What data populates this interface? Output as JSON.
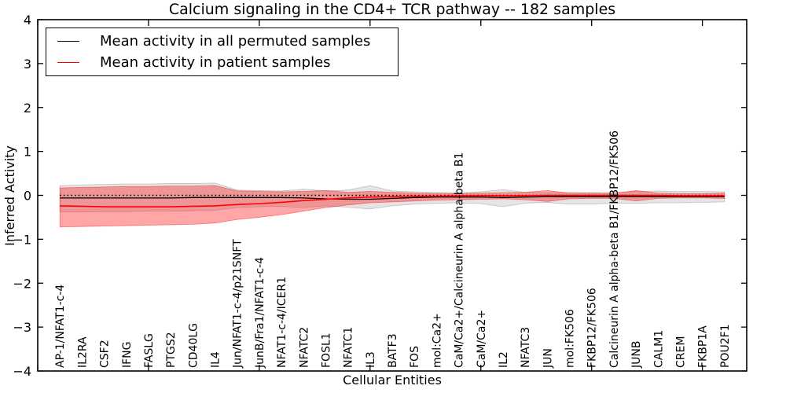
{
  "figure": {
    "title": "Calcium signaling in the CD4+ TCR pathway -- 182 samples",
    "xlabel": "Cellular Entities",
    "ylabel": "Inferred Activity"
  },
  "legend": {
    "position": "upper left",
    "items": [
      {
        "label": "Mean activity in all permuted samples",
        "color": "#000000"
      },
      {
        "label": "Mean activity in patient samples",
        "color": "#ff0000"
      }
    ]
  },
  "chart_data": {
    "type": "line",
    "title": "Calcium signaling in the CD4+ TCR pathway -- 182 samples",
    "xlabel": "Cellular Entities",
    "ylabel": "Inferred Activity",
    "xlim": [
      0,
      32
    ],
    "ylim": [
      -4,
      4
    ],
    "grid": false,
    "legend_position": "upper left",
    "yticks": [
      -4,
      -3,
      -2,
      -1,
      0,
      1,
      2,
      3,
      4
    ],
    "ytick_labels": [
      "−4",
      "−3",
      "−2",
      "−1",
      "0",
      "1",
      "2",
      "3",
      "4"
    ],
    "xticks_major": [
      0,
      5,
      10,
      15,
      20,
      25,
      30
    ],
    "categories": [
      "AP-1/NFAT1-c-4",
      "IL2RA",
      "CSF2",
      "IFNG",
      "FASLG",
      "PTGS2",
      "CD40LG",
      "IL4",
      "Jun/NFAT1-c-4/p21SNFT",
      "JunB/Fra1/NFAT1-c-4",
      "NFAT1-c-4/ICER1",
      "NFATC2",
      "FOSL1",
      "NFATC1",
      "IL3",
      "BATF3",
      "FOS",
      "mol:Ca2+",
      "CaM/Ca2+/Calcineurin A alpha-beta B1",
      "CaM/Ca2+",
      "IL2",
      "NFATC3",
      "JUN",
      "mol:FK506",
      "FKBP12/FK506",
      "Calcineurin A alpha-beta B1/FKBP12/FK506",
      "JUNB",
      "CALM1",
      "CREM",
      "FKBP1A",
      "POU2F1"
    ],
    "x": [
      1,
      2,
      3,
      4,
      5,
      6,
      7,
      8,
      9,
      10,
      11,
      12,
      13,
      14,
      15,
      16,
      17,
      18,
      19,
      20,
      21,
      22,
      23,
      24,
      25,
      26,
      27,
      28,
      29,
      30,
      31
    ],
    "series": [
      {
        "name": "Mean activity in all permuted samples",
        "color": "#000000",
        "line_width": 1.3,
        "values": [
          -0.06,
          -0.06,
          -0.06,
          -0.06,
          -0.06,
          -0.06,
          -0.05,
          -0.05,
          -0.05,
          -0.05,
          -0.05,
          -0.06,
          -0.08,
          -0.09,
          -0.09,
          -0.07,
          -0.05,
          -0.04,
          -0.04,
          -0.04,
          -0.05,
          -0.04,
          -0.03,
          -0.03,
          -0.03,
          -0.03,
          -0.03,
          -0.03,
          -0.03,
          -0.03,
          -0.03
        ]
      },
      {
        "name": "Mean activity in patient samples",
        "color": "#ff0000",
        "line_width": 1.6,
        "values": [
          -0.24,
          -0.25,
          -0.26,
          -0.26,
          -0.26,
          -0.26,
          -0.25,
          -0.24,
          -0.21,
          -0.19,
          -0.16,
          -0.12,
          -0.09,
          -0.06,
          -0.04,
          -0.03,
          -0.02,
          -0.02,
          -0.01,
          -0.01,
          -0.01,
          -0.01,
          0,
          0,
          0,
          0,
          0,
          0,
          -0.01,
          -0.01,
          -0.01
        ]
      }
    ],
    "bands": [
      {
        "name": "permuted-samples-range",
        "color": "#000000",
        "opacity": 0.1,
        "upper": [
          0.22,
          0.24,
          0.25,
          0.26,
          0.26,
          0.27,
          0.27,
          0.28,
          0.12,
          0.11,
          0.1,
          0.14,
          0.1,
          0.12,
          0.22,
          0.1,
          0.08,
          0.07,
          0.06,
          0.08,
          0.13,
          0.07,
          0.06,
          0.06,
          0.06,
          0.07,
          0.09,
          0.1,
          0.09,
          0.09,
          0.08
        ],
        "lower": [
          -0.38,
          -0.38,
          -0.37,
          -0.37,
          -0.36,
          -0.36,
          -0.35,
          -0.34,
          -0.28,
          -0.26,
          -0.25,
          -0.28,
          -0.24,
          -0.27,
          -0.31,
          -0.24,
          -0.2,
          -0.18,
          -0.17,
          -0.19,
          -0.26,
          -0.18,
          -0.16,
          -0.2,
          -0.2,
          -0.18,
          -0.18,
          -0.17,
          -0.17,
          -0.16,
          -0.15
        ]
      },
      {
        "name": "patient-samples-range",
        "color": "#ff0000",
        "opacity": 0.35,
        "upper": [
          0.17,
          0.18,
          0.19,
          0.2,
          0.2,
          0.21,
          0.21,
          0.22,
          0.1,
          0.09,
          0.08,
          0.09,
          0.11,
          0.07,
          0.09,
          0.07,
          0.05,
          0.04,
          0.04,
          0.05,
          0.06,
          0.07,
          0.11,
          0.05,
          0.05,
          0.04,
          0.11,
          0.05,
          0.04,
          0.04,
          0.05
        ],
        "lower": [
          -0.72,
          -0.71,
          -0.7,
          -0.69,
          -0.68,
          -0.67,
          -0.66,
          -0.63,
          -0.55,
          -0.5,
          -0.44,
          -0.36,
          -0.28,
          -0.22,
          -0.17,
          -0.15,
          -0.13,
          -0.11,
          -0.1,
          -0.09,
          -0.08,
          -0.1,
          -0.14,
          -0.08,
          -0.07,
          -0.07,
          -0.13,
          -0.07,
          -0.06,
          -0.06,
          -0.07
        ]
      }
    ],
    "zero_line": {
      "y": 0,
      "style": "dotted",
      "color": "#000000"
    }
  }
}
